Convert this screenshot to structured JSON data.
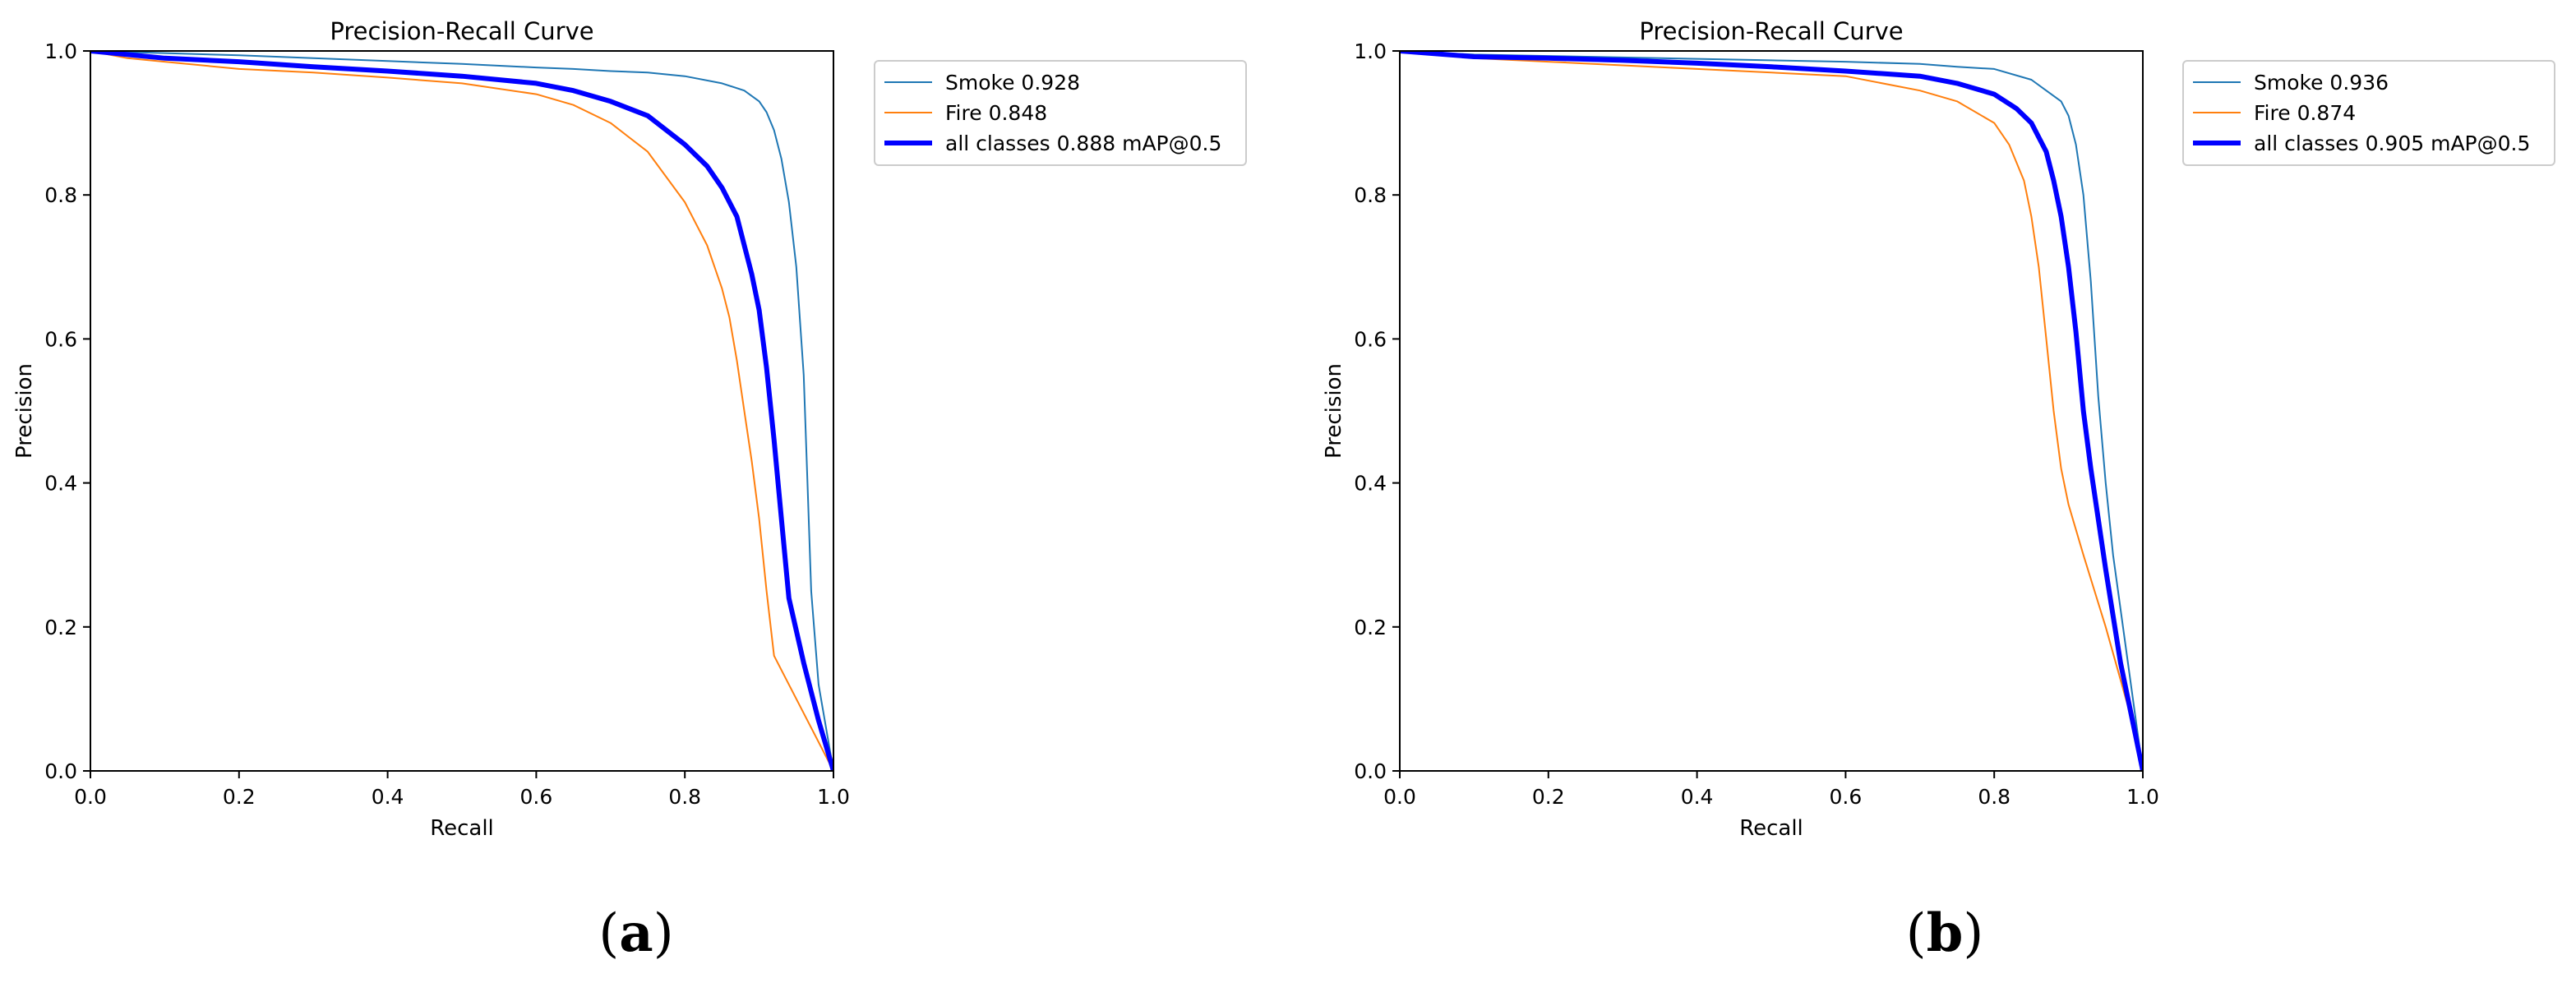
{
  "chart_data": [
    {
      "type": "line",
      "panel_label": "a",
      "title": "Precision-Recall Curve",
      "xlabel": "Recall",
      "ylabel": "Precision",
      "xlim": [
        0,
        1
      ],
      "ylim": [
        0,
        1
      ],
      "xticks": [
        "0.0",
        "0.2",
        "0.4",
        "0.6",
        "0.8",
        "1.0"
      ],
      "yticks": [
        "0.0",
        "0.2",
        "0.4",
        "0.6",
        "0.8",
        "1.0"
      ],
      "grid": false,
      "legend_position": "outside-top-right",
      "series": [
        {
          "name": "Smoke 0.928",
          "color": "#1f77b4",
          "width": "thin",
          "x": [
            0,
            0.1,
            0.2,
            0.3,
            0.4,
            0.5,
            0.6,
            0.65,
            0.7,
            0.75,
            0.8,
            0.85,
            0.88,
            0.9,
            0.91,
            0.92,
            0.93,
            0.94,
            0.95,
            0.96,
            0.965,
            0.97,
            0.98,
            1.0
          ],
          "y": [
            1.0,
            0.997,
            0.994,
            0.99,
            0.986,
            0.982,
            0.977,
            0.975,
            0.972,
            0.97,
            0.965,
            0.955,
            0.945,
            0.93,
            0.915,
            0.89,
            0.85,
            0.79,
            0.7,
            0.55,
            0.4,
            0.25,
            0.12,
            0.0
          ]
        },
        {
          "name": "Fire 0.848",
          "color": "#ff7f0e",
          "width": "thin",
          "x": [
            0,
            0.05,
            0.1,
            0.2,
            0.3,
            0.4,
            0.5,
            0.6,
            0.65,
            0.7,
            0.75,
            0.8,
            0.83,
            0.85,
            0.86,
            0.87,
            0.88,
            0.89,
            0.9,
            0.91,
            0.92,
            0.94,
            0.97,
            1.0
          ],
          "y": [
            1.0,
            0.99,
            0.985,
            0.975,
            0.97,
            0.963,
            0.955,
            0.94,
            0.925,
            0.9,
            0.86,
            0.79,
            0.73,
            0.67,
            0.63,
            0.57,
            0.5,
            0.43,
            0.35,
            0.25,
            0.16,
            0.12,
            0.06,
            0.0
          ]
        },
        {
          "name": "all classes 0.888 mAP@0.5",
          "color": "#0000ff",
          "width": "thick",
          "x": [
            0,
            0.05,
            0.1,
            0.2,
            0.3,
            0.4,
            0.5,
            0.6,
            0.65,
            0.7,
            0.75,
            0.8,
            0.83,
            0.85,
            0.87,
            0.88,
            0.89,
            0.9,
            0.91,
            0.92,
            0.93,
            0.94,
            0.96,
            0.98,
            1.0
          ],
          "y": [
            1.0,
            0.995,
            0.99,
            0.985,
            0.978,
            0.972,
            0.965,
            0.955,
            0.945,
            0.93,
            0.91,
            0.87,
            0.84,
            0.81,
            0.77,
            0.73,
            0.69,
            0.64,
            0.56,
            0.46,
            0.35,
            0.24,
            0.15,
            0.07,
            0.0
          ]
        }
      ]
    },
    {
      "type": "line",
      "panel_label": "b",
      "title": "Precision-Recall Curve",
      "xlabel": "Recall",
      "ylabel": "Precision",
      "xlim": [
        0,
        1
      ],
      "ylim": [
        0,
        1
      ],
      "xticks": [
        "0.0",
        "0.2",
        "0.4",
        "0.6",
        "0.8",
        "1.0"
      ],
      "yticks": [
        "0.0",
        "0.2",
        "0.4",
        "0.6",
        "0.8",
        "1.0"
      ],
      "grid": false,
      "legend_position": "outside-top-right",
      "series": [
        {
          "name": "Smoke 0.936",
          "color": "#1f77b4",
          "width": "thin",
          "x": [
            0,
            0.1,
            0.2,
            0.3,
            0.4,
            0.5,
            0.6,
            0.7,
            0.75,
            0.8,
            0.85,
            0.87,
            0.89,
            0.9,
            0.91,
            0.92,
            0.93,
            0.94,
            0.95,
            0.96,
            0.98,
            1.0
          ],
          "y": [
            1.0,
            0.995,
            0.993,
            0.991,
            0.989,
            0.987,
            0.985,
            0.982,
            0.978,
            0.975,
            0.96,
            0.945,
            0.93,
            0.91,
            0.87,
            0.8,
            0.68,
            0.52,
            0.4,
            0.3,
            0.15,
            0.0
          ]
        },
        {
          "name": "Fire 0.874",
          "color": "#ff7f0e",
          "width": "thin",
          "x": [
            0,
            0.1,
            0.2,
            0.3,
            0.4,
            0.5,
            0.6,
            0.7,
            0.75,
            0.8,
            0.82,
            0.84,
            0.85,
            0.86,
            0.87,
            0.88,
            0.89,
            0.9,
            0.92,
            0.95,
            0.98,
            1.0
          ],
          "y": [
            1.0,
            0.99,
            0.985,
            0.98,
            0.975,
            0.97,
            0.965,
            0.945,
            0.93,
            0.9,
            0.87,
            0.82,
            0.77,
            0.7,
            0.6,
            0.5,
            0.42,
            0.37,
            0.3,
            0.2,
            0.09,
            0.0
          ]
        },
        {
          "name": "all classes 0.905 mAP@0.5",
          "color": "#0000ff",
          "width": "thick",
          "x": [
            0,
            0.1,
            0.2,
            0.3,
            0.4,
            0.5,
            0.6,
            0.7,
            0.75,
            0.8,
            0.83,
            0.85,
            0.87,
            0.88,
            0.89,
            0.9,
            0.91,
            0.92,
            0.93,
            0.95,
            0.97,
            0.99,
            1.0
          ],
          "y": [
            1.0,
            0.992,
            0.99,
            0.987,
            0.983,
            0.978,
            0.972,
            0.965,
            0.955,
            0.94,
            0.92,
            0.9,
            0.86,
            0.82,
            0.77,
            0.7,
            0.61,
            0.5,
            0.42,
            0.28,
            0.15,
            0.05,
            0.0
          ]
        }
      ]
    }
  ]
}
